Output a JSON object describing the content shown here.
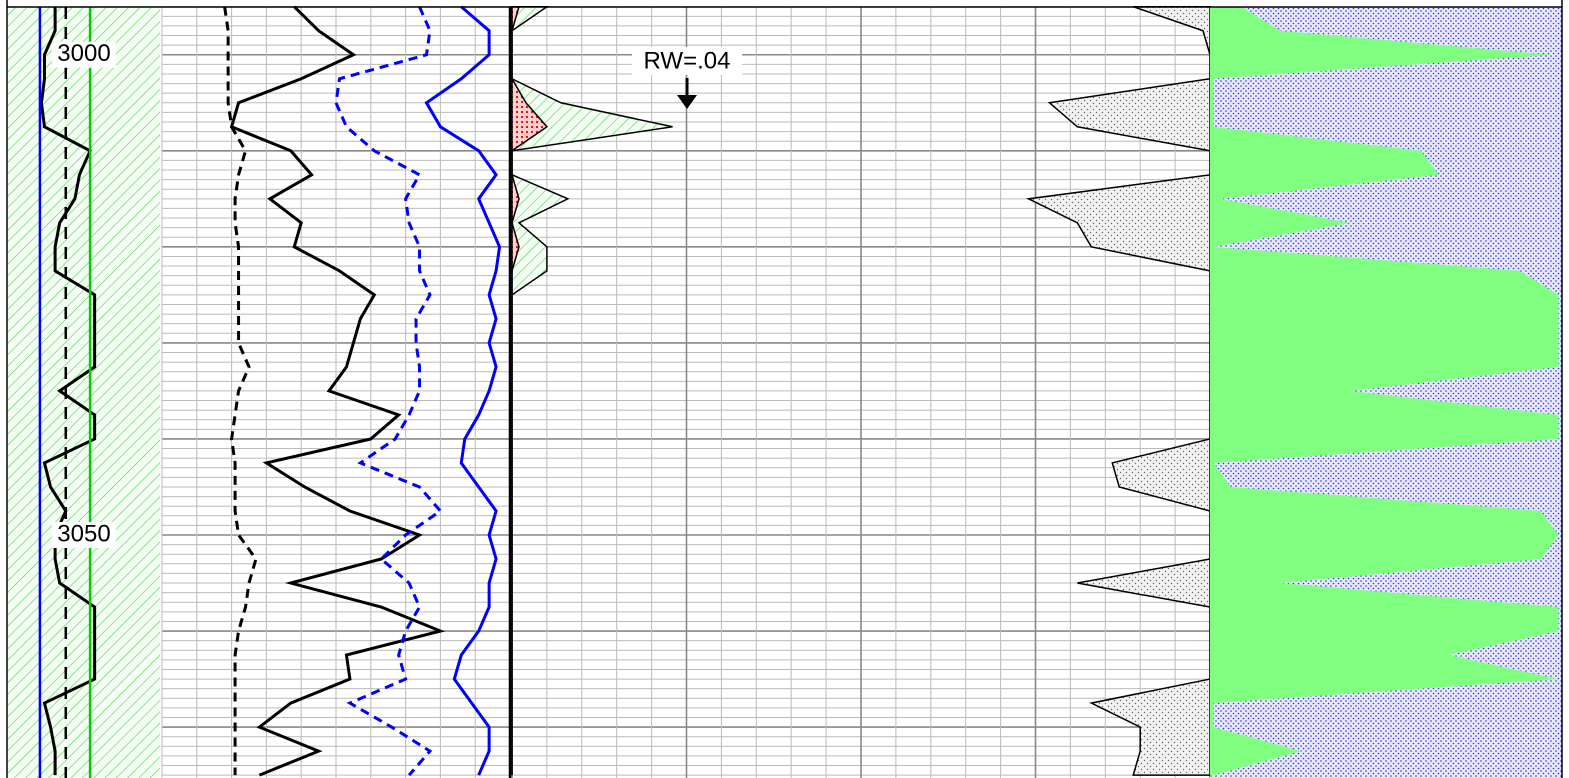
{
  "chart_data": {
    "type": "well-log",
    "depth": [
      2995,
      2997.5,
      3000,
      3002.5,
      3005,
      3007.5,
      3010,
      3012.5,
      3015,
      3017.5,
      3020,
      3022.5,
      3025,
      3027.5,
      3030,
      3032.5,
      3035,
      3037.5,
      3040,
      3042.5,
      3045,
      3047.5,
      3050,
      3052.5,
      3055,
      3057.5,
      3060,
      3062.5,
      3065,
      3067.5,
      3070,
      3072.5,
      3075
    ],
    "ylim": [
      2994.3,
      3075.3
    ],
    "yticks": [
      3000,
      3050
    ],
    "grid": true,
    "grid_step": 1,
    "major_grid_step": 10,
    "annotations": [
      {
        "text": "RW=.04"
      }
    ],
    "tracks": [
      {
        "xlim": [
          0,
          100
        ],
        "background": "hatch",
        "reference_lines": [
          {
            "value": 21,
            "color": "#0000ff",
            "dash": false
          },
          {
            "value": 54,
            "color": "#00cc00",
            "dash": false
          },
          {
            "value": 38,
            "color": "#000000",
            "dash": true
          }
        ],
        "series": [
          {
            "style": "line",
            "color": "#000000",
            "dash": false,
            "values": [
              31,
              31,
              24,
              24,
              22,
              24,
              54,
              47,
              44,
              34,
              31,
              31,
              57,
              57,
              57,
              57,
              34,
              57,
              57,
              24,
              28,
              38,
              31,
              31,
              34,
              57,
              57,
              57,
              57,
              24,
              28,
              31,
              31
            ]
          }
        ]
      },
      {
        "xlim": [
          0,
          100
        ],
        "grid_divisions": 10,
        "series": [
          {
            "style": "line",
            "color": "#000000",
            "dash": true,
            "values": [
              18,
              19,
              19,
              19,
              19,
              20,
              24,
              22,
              21,
              21,
              22,
              22,
              22,
              22,
              22,
              25,
              22,
              21,
              20,
              21,
              21,
              21,
              22,
              27,
              25,
              24,
              22,
              21,
              21,
              21,
              21,
              21,
              21
            ]
          },
          {
            "style": "line",
            "color": "#000000",
            "dash": false,
            "values": [
              38,
              45,
              55,
              40,
              22,
              20,
              37,
              43,
              31,
              40,
              38,
              51,
              61,
              57,
              55,
              53,
              48,
              68,
              60,
              30,
              41,
              54,
              74,
              63,
              37,
              63,
              80,
              53,
              54,
              37,
              28,
              45,
              28
            ]
          },
          {
            "style": "line",
            "color": "#0000ff",
            "dash": true,
            "values": [
              74,
              77,
              76,
              51,
              50,
              53,
              61,
              74,
              70,
              71,
              74,
              74,
              77,
              73,
              73,
              74,
              74,
              71,
              67,
              57,
              74,
              80,
              70,
              63,
              71,
              74,
              70,
              68,
              70,
              54,
              66,
              77,
              71
            ]
          },
          {
            "style": "line",
            "color": "#0000ff",
            "dash": false,
            "values": [
              86,
              94,
              94,
              86,
              76,
              80,
              91,
              96,
              91,
              94,
              97,
              96,
              94,
              96,
              94,
              96,
              94,
              91,
              87,
              86,
              91,
              96,
              94,
              96,
              94,
              94,
              91,
              86,
              84,
              89,
              94,
              94,
              91
            ]
          }
        ]
      },
      {
        "xlim": [
          0,
          100
        ],
        "grid_divisions": 20,
        "major_every": 5,
        "series": [
          {
            "style": "fill-right",
            "color": "#e8e8e8",
            "pattern": "dots",
            "values": [
              89,
              99,
              100,
              100,
              77,
              81,
              100,
              100,
              74,
              81,
              83,
              100,
              100,
              100,
              100,
              100,
              100,
              100,
              100,
              86,
              87,
              100,
              100,
              100,
              81,
              100,
              100,
              100,
              100,
              83,
              90,
              90,
              89
            ]
          },
          {
            "style": "fill-left",
            "color": "#ccffcc",
            "pattern": "hatch",
            "values": [
              5,
              0,
              0,
              0,
              7,
              23,
              0,
              0,
              8,
              1,
              5,
              5,
              0,
              0,
              0,
              0,
              0,
              0,
              0,
              0,
              0,
              0,
              0,
              0,
              0,
              0,
              0,
              0,
              0,
              0,
              0,
              0,
              0
            ]
          },
          {
            "style": "fill-left",
            "color": "#ff4040",
            "pattern": "reddots",
            "values": [
              1,
              0,
              0,
              0,
              2,
              5,
              0,
              0,
              1,
              0,
              1,
              0,
              0,
              0,
              0,
              0,
              0,
              0,
              0,
              0,
              0,
              0,
              0,
              0,
              0,
              0,
              0,
              0,
              0,
              0,
              0,
              0,
              0
            ]
          }
        ]
      },
      {
        "xlim": [
          0,
          100
        ],
        "series": [
          {
            "style": "split-fill",
            "color": "#80ff80",
            "color_right": "#c8c8ff",
            "pattern": "bluedots",
            "values": [
              9,
              20,
              97,
              1,
              1,
              1,
              60,
              65,
              3,
              40,
              1,
              88,
              99,
              99,
              99,
              99,
              40,
              99,
              99,
              1,
              6,
              94,
              99,
              94,
              20,
              99,
              99,
              68,
              99,
              1,
              1,
              26,
              1
            ]
          }
        ]
      }
    ]
  }
}
